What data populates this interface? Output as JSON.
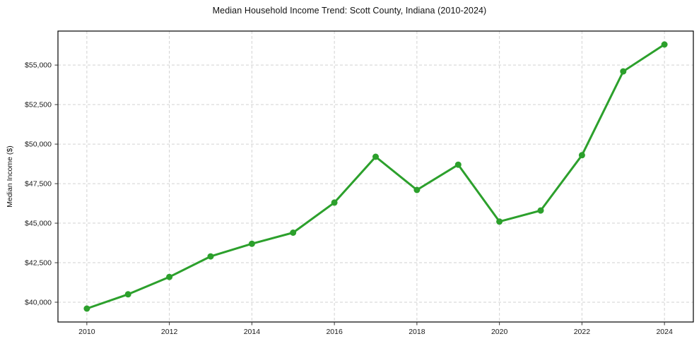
{
  "figure": {
    "background": "#ffffff"
  },
  "chart_data": {
    "type": "line",
    "title": "Median Household Income Trend: Scott County, Indiana (2010-2024)",
    "xlabel": "",
    "ylabel": "Median Income ($)",
    "series": [
      {
        "name": "Median Household Income",
        "x": [
          2010,
          2011,
          2012,
          2013,
          2014,
          2015,
          2016,
          2017,
          2018,
          2019,
          2020,
          2021,
          2022,
          2023,
          2024
        ],
        "values": [
          39600,
          40500,
          41600,
          42900,
          43700,
          44400,
          46300,
          49200,
          47100,
          48700,
          45100,
          45800,
          49300,
          54600,
          56300
        ]
      }
    ],
    "xlim": [
      2009.3,
      2024.7
    ],
    "ylim": [
      38750,
      57150
    ],
    "xticks": [
      2010,
      2012,
      2014,
      2016,
      2018,
      2020,
      2022,
      2024
    ],
    "xtick_labels": [
      "2010",
      "2012",
      "2014",
      "2016",
      "2018",
      "2020",
      "2022",
      "2024"
    ],
    "yticks": [
      40000,
      42500,
      45000,
      47500,
      50000,
      52500,
      55000
    ],
    "ytick_labels": [
      "$40,000",
      "$42,500",
      "$45,000",
      "$47,500",
      "$50,000",
      "$52,500",
      "$55,000"
    ],
    "grid": true,
    "legend": "none",
    "line_color": "#2ca02c",
    "marker": "circle",
    "marker_radius": 4.5,
    "line_width": 3,
    "grid_color": "#d2d2d2",
    "spine_color": "#000000",
    "tick_color": "#333333",
    "text_color": "#1a1a1a",
    "plot_background": "#ffffff"
  }
}
